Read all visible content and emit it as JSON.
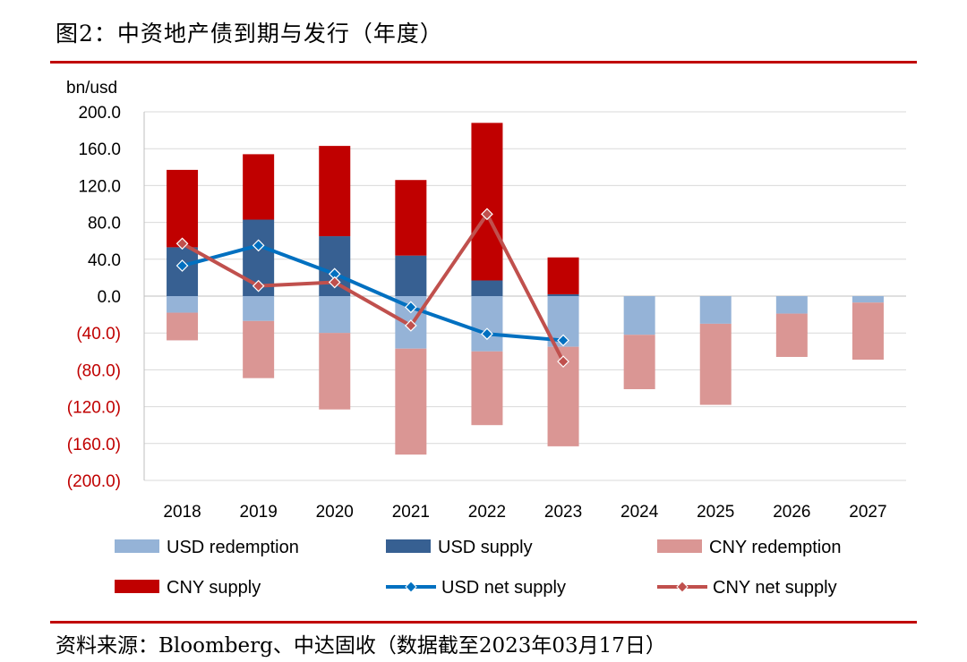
{
  "title": "图2：中资地产债到期与发行（年度）",
  "source": "资料来源：Bloomberg、中达固收（数据截至2023年03月17日）",
  "colors": {
    "usd_redemption": "#95b3d7",
    "usd_supply": "#376092",
    "cny_redemption": "#da9694",
    "cny_supply": "#c00000",
    "usd_net": "#0070c0",
    "cny_net": "#c0504d",
    "negative_label": "#c00000",
    "rule": "#c00000"
  },
  "chart_data": {
    "type": "bar",
    "unit_label": "bn/usd",
    "categories": [
      "2018",
      "2019",
      "2020",
      "2021",
      "2022",
      "2023",
      "2024",
      "2025",
      "2026",
      "2027"
    ],
    "ylim": [
      -200,
      200
    ],
    "yticks": [
      200,
      160,
      120,
      80,
      40,
      0,
      -40,
      -80,
      -120,
      -160,
      -200
    ],
    "ytick_labels": [
      "200.0",
      "160.0",
      "120.0",
      "80.0",
      "40.0",
      "0.0",
      "(40.0)",
      "(80.0)",
      "(120.0)",
      "(160.0)",
      "(200.0)"
    ],
    "grid": true,
    "stacking": "positive and negative stacks",
    "series": [
      {
        "name": "USD redemption",
        "kind": "bar",
        "stack": "neg",
        "values": [
          -18,
          -27,
          -40,
          -57,
          -60,
          -55,
          -42,
          -30,
          -19,
          -7
        ]
      },
      {
        "name": "USD supply",
        "kind": "bar",
        "stack": "pos",
        "values": [
          53,
          83,
          65,
          44,
          17,
          2,
          0,
          0,
          0,
          0
        ]
      },
      {
        "name": "CNY redemption",
        "kind": "bar",
        "stack": "neg",
        "values": [
          -30,
          -62,
          -83,
          -115,
          -80,
          -108,
          -59,
          -88,
          -47,
          -62
        ]
      },
      {
        "name": "CNY supply",
        "kind": "bar",
        "stack": "pos",
        "values": [
          84,
          71,
          98,
          82,
          171,
          40,
          0,
          0,
          0,
          0
        ]
      },
      {
        "name": "USD net supply",
        "kind": "line",
        "values": [
          33,
          55,
          24,
          -12,
          -41,
          -48,
          null,
          null,
          null,
          null
        ]
      },
      {
        "name": "CNY net supply",
        "kind": "line",
        "values": [
          57,
          11,
          15,
          -32,
          89,
          -71,
          null,
          null,
          null,
          null
        ]
      }
    ],
    "legend": [
      {
        "label": "USD redemption",
        "type": "rect"
      },
      {
        "label": "USD supply",
        "type": "rect"
      },
      {
        "label": "CNY redemption",
        "type": "rect"
      },
      {
        "label": "CNY supply",
        "type": "rect"
      },
      {
        "label": "USD net supply",
        "type": "line"
      },
      {
        "label": "CNY net supply",
        "type": "line"
      }
    ],
    "legend_placement": "bottom"
  }
}
